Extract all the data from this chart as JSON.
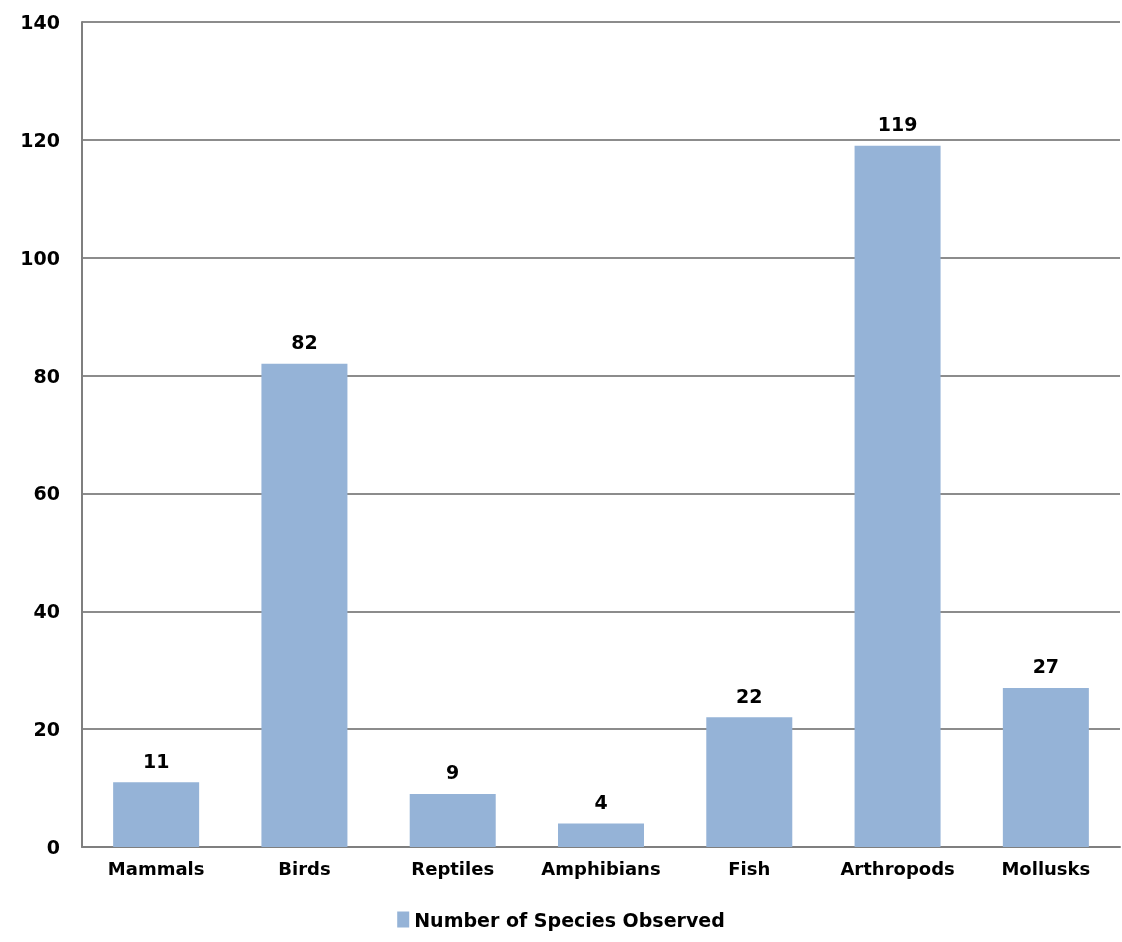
{
  "chart_data": {
    "type": "bar",
    "categories": [
      "Mammals",
      "Birds",
      "Reptiles",
      "Amphibians",
      "Fish",
      "Arthropods",
      "Mollusks"
    ],
    "series": [
      {
        "name": "Number of Species Observed",
        "color": "#95b3d7",
        "values": [
          11,
          82,
          9,
          4,
          22,
          119,
          27
        ]
      }
    ],
    "ylim": [
      0,
      140
    ],
    "yticks": [
      0,
      20,
      40,
      60,
      80,
      100,
      120,
      140
    ],
    "grid": "y",
    "legend": "bottom",
    "data_labels": true
  }
}
